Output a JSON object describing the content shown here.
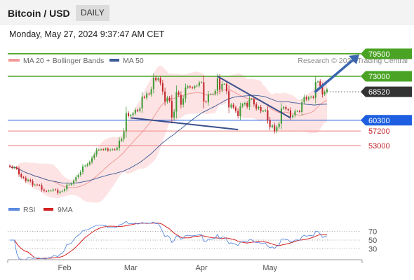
{
  "header": {
    "title": "Bitcoin / USD",
    "timeframe": "DAILY",
    "datetime": "Monday, May 27, 2024 9:37:47 AM CET"
  },
  "legend": {
    "items": [
      {
        "label": "MA 20 + Bollinger Bands",
        "color": "#f29a9a"
      },
      {
        "label": "MA 50",
        "color": "#3a5a99"
      }
    ],
    "source": "Research © 2024 Trading Central"
  },
  "colors": {
    "up": "#3d9b35",
    "down": "#c0242a",
    "resistance": "#4aa324",
    "support": "#1d5fe0",
    "target_zone": "#f2a0a0",
    "bollinger_fill": "#fde0e0",
    "arrow": "#3a66b0",
    "pivot_box": "#333333"
  },
  "chart_data": [
    {
      "type": "line",
      "title": "",
      "x": [
        "2024-01-08",
        "2024-01-09",
        "2024-01-10",
        "2024-01-11",
        "2024-01-12",
        "2024-01-13",
        "2024-01-14",
        "2024-01-15",
        "2024-01-16",
        "2024-01-17",
        "2024-01-18",
        "2024-01-19",
        "2024-01-20",
        "2024-01-21",
        "2024-01-22",
        "2024-01-23",
        "2024-01-24",
        "2024-01-25",
        "2024-01-26",
        "2024-01-27",
        "2024-01-28",
        "2024-01-29",
        "2024-01-30",
        "2024-01-31",
        "2024-02-01",
        "2024-02-02",
        "2024-02-03",
        "2024-02-04",
        "2024-02-05",
        "2024-02-06",
        "2024-02-07",
        "2024-02-08",
        "2024-02-09",
        "2024-02-10",
        "2024-02-11",
        "2024-02-12",
        "2024-02-13",
        "2024-02-14",
        "2024-02-15",
        "2024-02-16",
        "2024-02-17",
        "2024-02-18",
        "2024-02-19",
        "2024-02-20",
        "2024-02-21",
        "2024-02-22",
        "2024-02-23",
        "2024-02-24",
        "2024-02-25",
        "2024-02-26",
        "2024-02-27",
        "2024-02-28",
        "2024-02-29",
        "2024-03-01",
        "2024-03-02",
        "2024-03-03",
        "2024-03-04",
        "2024-03-05",
        "2024-03-06",
        "2024-03-07",
        "2024-03-08",
        "2024-03-09",
        "2024-03-10",
        "2024-03-11",
        "2024-03-12",
        "2024-03-13",
        "2024-03-14",
        "2024-03-15",
        "2024-03-16",
        "2024-03-17",
        "2024-03-18",
        "2024-03-19",
        "2024-03-20",
        "2024-03-21",
        "2024-03-22",
        "2024-03-23",
        "2024-03-24",
        "2024-03-25",
        "2024-03-26",
        "2024-03-27",
        "2024-03-28",
        "2024-03-29",
        "2024-03-30",
        "2024-03-31",
        "2024-04-01",
        "2024-04-02",
        "2024-04-03",
        "2024-04-04",
        "2024-04-05",
        "2024-04-06",
        "2024-04-07",
        "2024-04-08",
        "2024-04-09",
        "2024-04-10",
        "2024-04-11",
        "2024-04-12",
        "2024-04-13",
        "2024-04-14",
        "2024-04-15",
        "2024-04-16",
        "2024-04-17",
        "2024-04-18",
        "2024-04-19",
        "2024-04-20",
        "2024-04-21",
        "2024-04-22",
        "2024-04-23",
        "2024-04-24",
        "2024-04-25",
        "2024-04-26",
        "2024-04-27",
        "2024-04-28",
        "2024-04-29",
        "2024-04-30",
        "2024-05-01",
        "2024-05-02",
        "2024-05-03",
        "2024-05-04",
        "2024-05-05",
        "2024-05-06",
        "2024-05-07",
        "2024-05-08",
        "2024-05-09",
        "2024-05-10",
        "2024-05-11",
        "2024-05-12",
        "2024-05-13",
        "2024-05-14",
        "2024-05-15",
        "2024-05-16",
        "2024-05-17",
        "2024-05-18",
        "2024-05-19",
        "2024-05-20",
        "2024-05-21",
        "2024-05-22",
        "2024-05-23",
        "2024-05-24",
        "2024-05-25",
        "2024-05-26"
      ],
      "close": [
        46900,
        46500,
        46700,
        46300,
        44700,
        43900,
        43700,
        42800,
        43100,
        42700,
        41600,
        41700,
        41600,
        41500,
        40300,
        39900,
        39800,
        40000,
        40000,
        40300,
        40200,
        39300,
        39700,
        39900,
        40400,
        41700,
        41700,
        42000,
        42900,
        43900,
        44500,
        45400,
        47000,
        47200,
        47600,
        48200,
        49400,
        50400,
        51700,
        51800,
        51900,
        51800,
        52100,
        51600,
        51800,
        51900,
        51800,
        52300,
        54400,
        54900,
        57100,
        62400,
        61500,
        61800,
        62300,
        63300,
        63000,
        63700,
        67100,
        66800,
        68000,
        67800,
        69300,
        72600,
        71900,
        72400,
        71000,
        68600,
        65700,
        66800,
        65900,
        61100,
        62800,
        68400,
        67600,
        64800,
        66600,
        69700,
        70100,
        69800,
        69600,
        70100,
        70300,
        71200,
        71300,
        65700,
        65500,
        67800,
        67800,
        67900,
        68800,
        72400,
        69100,
        70800,
        70800,
        68700,
        64000,
        64800,
        64000,
        63000,
        61500,
        64300,
        64900,
        65300,
        64200,
        66400,
        66400,
        64900,
        63700,
        64100,
        62900,
        63000,
        63200,
        60400,
        58300,
        58800,
        57200,
        58300,
        59300,
        63700,
        64100,
        63500,
        63200,
        61200,
        61700,
        62900,
        63000,
        62700,
        65500,
        67000,
        66300,
        66900,
        67100,
        66800,
        71400,
        71500,
        70100,
        67800,
        68500,
        69200
      ],
      "series": [
        {
          "name": "MA 20 + Bollinger Bands",
          "role": "ma20",
          "values": "computed from close (20-period simple average, bands at ±2σ)"
        },
        {
          "name": "MA 50",
          "role": "ma50",
          "values": "computed from close (50-period simple average)"
        }
      ],
      "levels": [
        {
          "value": 79500,
          "label": "79500",
          "kind": "resistance"
        },
        {
          "value": 73000,
          "label": "73000",
          "kind": "resistance"
        },
        {
          "value": 68520,
          "label": "68520",
          "kind": "pivot"
        },
        {
          "value": 60300,
          "label": "60300",
          "kind": "support"
        },
        {
          "value": 57200,
          "label": "57200",
          "kind": "target"
        },
        {
          "value": 53000,
          "label": "53000",
          "kind": "target"
        }
      ],
      "trendlines": [
        {
          "from": [
            "2024-03-01",
            61000
          ],
          "to": [
            "2024-04-17",
            57600
          ]
        },
        {
          "from": [
            "2024-04-08",
            73000
          ],
          "to": [
            "2024-05-10",
            61000
          ]
        }
      ],
      "forecast_arrow": {
        "from": [
          "2024-05-21",
          68600
        ],
        "to": [
          "2024-05-27",
          79500
        ]
      },
      "xtick_labels": [
        {
          "date": "2024-02-01",
          "label": "Feb"
        },
        {
          "date": "2024-03-01",
          "label": "Mar"
        },
        {
          "date": "2024-04-01",
          "label": "Apr"
        },
        {
          "date": "2024-05-01",
          "label": "May"
        }
      ],
      "ylim": [
        36000,
        82500
      ],
      "grid": false
    },
    {
      "type": "line",
      "title": "",
      "series": [
        {
          "name": "RSI",
          "color": "#5b8ae0",
          "values": "computed from close (14-period RSI)"
        },
        {
          "name": "9MA",
          "color": "#d42020",
          "values": "computed from RSI (9-period simple average)"
        }
      ],
      "yticks": [
        70,
        50,
        30
      ],
      "ylim": [
        10,
        90
      ],
      "grid": false
    }
  ]
}
